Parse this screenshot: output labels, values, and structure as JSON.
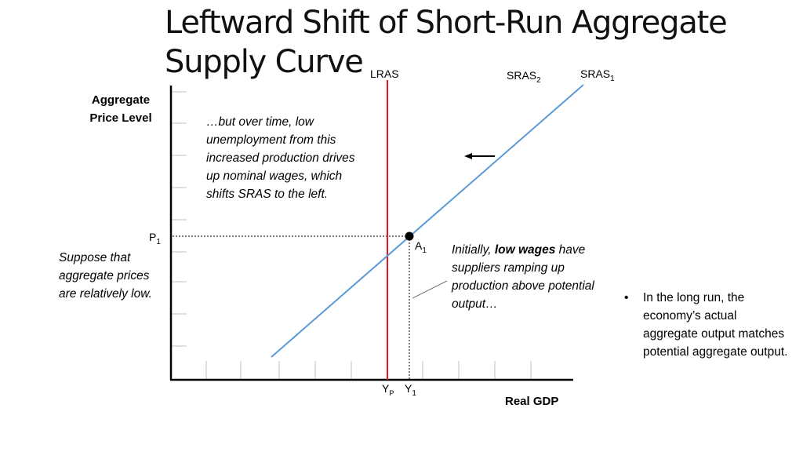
{
  "title": {
    "line1": "Leftward Shift of Short-Run Aggregate",
    "line2": "Supply Curve"
  },
  "axes": {
    "y_title_line1": "Aggregate",
    "y_title_line2": "Price Level",
    "x_title": "Real GDP"
  },
  "curves": {
    "lras": {
      "label": "LRAS",
      "color": "#e8141e"
    },
    "sras1": {
      "label": "SRAS",
      "sub": "1",
      "color": "#5b9bd5"
    },
    "sras2": {
      "label": "SRAS",
      "sub": "2"
    }
  },
  "points": {
    "p1": {
      "label": "P",
      "sub": "1"
    },
    "a1": {
      "label": "A",
      "sub": "1"
    },
    "yp": {
      "label": "Y",
      "sub": "P"
    },
    "y1": {
      "label": "Y",
      "sub": "1"
    }
  },
  "notes": {
    "over_time": "…but over time, low unemployment from this increased production drives up nominal wages, which shifts SRAS to the left.",
    "suppose": "Suppose that aggregate prices are relatively low.",
    "initially_pre": "Initially, ",
    "initially_bold": "low wages",
    "initially_post": " have suppliers ramping up production above potential output…"
  },
  "bullet": {
    "marker": "•",
    "text": "In the long run, the economy’s actual aggregate output matches potential aggregate output."
  }
}
